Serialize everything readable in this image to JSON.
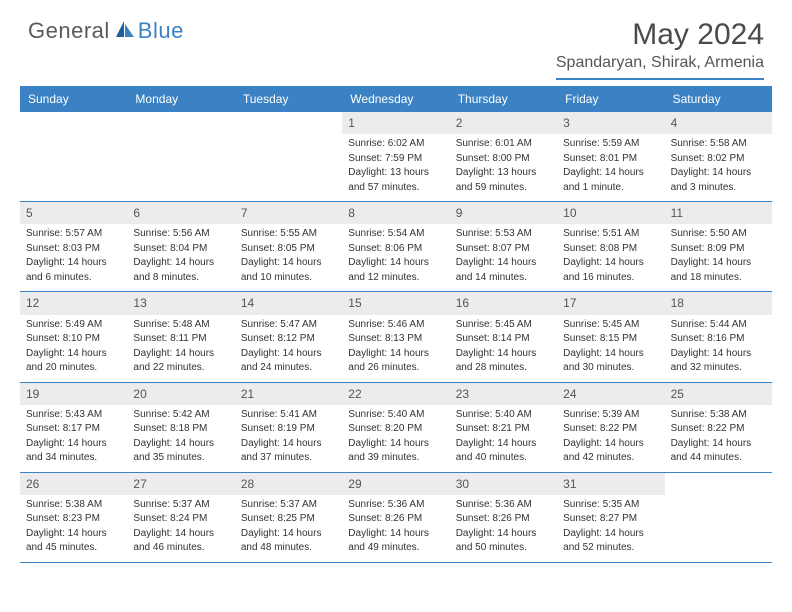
{
  "logo": {
    "part1": "General",
    "part2": "Blue"
  },
  "title": "May 2024",
  "location": "Spandaryan, Shirak, Armenia",
  "colors": {
    "accent": "#3b82c4",
    "header_bg": "#3b82c4",
    "header_text": "#ffffff",
    "daynum_bg": "#ececec",
    "text": "#333333"
  },
  "day_labels": [
    "Sunday",
    "Monday",
    "Tuesday",
    "Wednesday",
    "Thursday",
    "Friday",
    "Saturday"
  ],
  "weeks": [
    [
      null,
      null,
      null,
      {
        "n": "1",
        "sr": "Sunrise: 6:02 AM",
        "ss": "Sunset: 7:59 PM",
        "dl1": "Daylight: 13 hours",
        "dl2": "and 57 minutes."
      },
      {
        "n": "2",
        "sr": "Sunrise: 6:01 AM",
        "ss": "Sunset: 8:00 PM",
        "dl1": "Daylight: 13 hours",
        "dl2": "and 59 minutes."
      },
      {
        "n": "3",
        "sr": "Sunrise: 5:59 AM",
        "ss": "Sunset: 8:01 PM",
        "dl1": "Daylight: 14 hours",
        "dl2": "and 1 minute."
      },
      {
        "n": "4",
        "sr": "Sunrise: 5:58 AM",
        "ss": "Sunset: 8:02 PM",
        "dl1": "Daylight: 14 hours",
        "dl2": "and 3 minutes."
      }
    ],
    [
      {
        "n": "5",
        "sr": "Sunrise: 5:57 AM",
        "ss": "Sunset: 8:03 PM",
        "dl1": "Daylight: 14 hours",
        "dl2": "and 6 minutes."
      },
      {
        "n": "6",
        "sr": "Sunrise: 5:56 AM",
        "ss": "Sunset: 8:04 PM",
        "dl1": "Daylight: 14 hours",
        "dl2": "and 8 minutes."
      },
      {
        "n": "7",
        "sr": "Sunrise: 5:55 AM",
        "ss": "Sunset: 8:05 PM",
        "dl1": "Daylight: 14 hours",
        "dl2": "and 10 minutes."
      },
      {
        "n": "8",
        "sr": "Sunrise: 5:54 AM",
        "ss": "Sunset: 8:06 PM",
        "dl1": "Daylight: 14 hours",
        "dl2": "and 12 minutes."
      },
      {
        "n": "9",
        "sr": "Sunrise: 5:53 AM",
        "ss": "Sunset: 8:07 PM",
        "dl1": "Daylight: 14 hours",
        "dl2": "and 14 minutes."
      },
      {
        "n": "10",
        "sr": "Sunrise: 5:51 AM",
        "ss": "Sunset: 8:08 PM",
        "dl1": "Daylight: 14 hours",
        "dl2": "and 16 minutes."
      },
      {
        "n": "11",
        "sr": "Sunrise: 5:50 AM",
        "ss": "Sunset: 8:09 PM",
        "dl1": "Daylight: 14 hours",
        "dl2": "and 18 minutes."
      }
    ],
    [
      {
        "n": "12",
        "sr": "Sunrise: 5:49 AM",
        "ss": "Sunset: 8:10 PM",
        "dl1": "Daylight: 14 hours",
        "dl2": "and 20 minutes."
      },
      {
        "n": "13",
        "sr": "Sunrise: 5:48 AM",
        "ss": "Sunset: 8:11 PM",
        "dl1": "Daylight: 14 hours",
        "dl2": "and 22 minutes."
      },
      {
        "n": "14",
        "sr": "Sunrise: 5:47 AM",
        "ss": "Sunset: 8:12 PM",
        "dl1": "Daylight: 14 hours",
        "dl2": "and 24 minutes."
      },
      {
        "n": "15",
        "sr": "Sunrise: 5:46 AM",
        "ss": "Sunset: 8:13 PM",
        "dl1": "Daylight: 14 hours",
        "dl2": "and 26 minutes."
      },
      {
        "n": "16",
        "sr": "Sunrise: 5:45 AM",
        "ss": "Sunset: 8:14 PM",
        "dl1": "Daylight: 14 hours",
        "dl2": "and 28 minutes."
      },
      {
        "n": "17",
        "sr": "Sunrise: 5:45 AM",
        "ss": "Sunset: 8:15 PM",
        "dl1": "Daylight: 14 hours",
        "dl2": "and 30 minutes."
      },
      {
        "n": "18",
        "sr": "Sunrise: 5:44 AM",
        "ss": "Sunset: 8:16 PM",
        "dl1": "Daylight: 14 hours",
        "dl2": "and 32 minutes."
      }
    ],
    [
      {
        "n": "19",
        "sr": "Sunrise: 5:43 AM",
        "ss": "Sunset: 8:17 PM",
        "dl1": "Daylight: 14 hours",
        "dl2": "and 34 minutes."
      },
      {
        "n": "20",
        "sr": "Sunrise: 5:42 AM",
        "ss": "Sunset: 8:18 PM",
        "dl1": "Daylight: 14 hours",
        "dl2": "and 35 minutes."
      },
      {
        "n": "21",
        "sr": "Sunrise: 5:41 AM",
        "ss": "Sunset: 8:19 PM",
        "dl1": "Daylight: 14 hours",
        "dl2": "and 37 minutes."
      },
      {
        "n": "22",
        "sr": "Sunrise: 5:40 AM",
        "ss": "Sunset: 8:20 PM",
        "dl1": "Daylight: 14 hours",
        "dl2": "and 39 minutes."
      },
      {
        "n": "23",
        "sr": "Sunrise: 5:40 AM",
        "ss": "Sunset: 8:21 PM",
        "dl1": "Daylight: 14 hours",
        "dl2": "and 40 minutes."
      },
      {
        "n": "24",
        "sr": "Sunrise: 5:39 AM",
        "ss": "Sunset: 8:22 PM",
        "dl1": "Daylight: 14 hours",
        "dl2": "and 42 minutes."
      },
      {
        "n": "25",
        "sr": "Sunrise: 5:38 AM",
        "ss": "Sunset: 8:22 PM",
        "dl1": "Daylight: 14 hours",
        "dl2": "and 44 minutes."
      }
    ],
    [
      {
        "n": "26",
        "sr": "Sunrise: 5:38 AM",
        "ss": "Sunset: 8:23 PM",
        "dl1": "Daylight: 14 hours",
        "dl2": "and 45 minutes."
      },
      {
        "n": "27",
        "sr": "Sunrise: 5:37 AM",
        "ss": "Sunset: 8:24 PM",
        "dl1": "Daylight: 14 hours",
        "dl2": "and 46 minutes."
      },
      {
        "n": "28",
        "sr": "Sunrise: 5:37 AM",
        "ss": "Sunset: 8:25 PM",
        "dl1": "Daylight: 14 hours",
        "dl2": "and 48 minutes."
      },
      {
        "n": "29",
        "sr": "Sunrise: 5:36 AM",
        "ss": "Sunset: 8:26 PM",
        "dl1": "Daylight: 14 hours",
        "dl2": "and 49 minutes."
      },
      {
        "n": "30",
        "sr": "Sunrise: 5:36 AM",
        "ss": "Sunset: 8:26 PM",
        "dl1": "Daylight: 14 hours",
        "dl2": "and 50 minutes."
      },
      {
        "n": "31",
        "sr": "Sunrise: 5:35 AM",
        "ss": "Sunset: 8:27 PM",
        "dl1": "Daylight: 14 hours",
        "dl2": "and 52 minutes."
      },
      null
    ]
  ]
}
